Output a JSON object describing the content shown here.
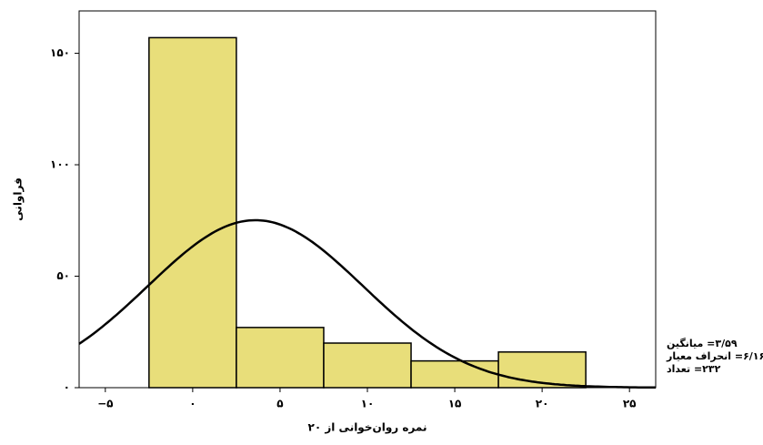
{
  "chart_data": {
    "type": "histogram",
    "x_label": "نمره روان‌خوانی از ۲۰",
    "y_label": "فراوانی",
    "bins": [
      -2.5,
      2.5,
      7.5,
      12.5,
      17.5,
      22.5
    ],
    "counts": [
      157,
      27,
      20,
      12,
      16
    ],
    "color": "#e8de7a",
    "xlim": [
      -6.5,
      26.5
    ],
    "xticks": [
      {
        "value": -5,
        "label": "−۵"
      },
      {
        "value": 0,
        "label": "۰"
      },
      {
        "value": 5,
        "label": "۵"
      },
      {
        "value": 10,
        "label": "۱۰"
      },
      {
        "value": 15,
        "label": "۱۵"
      },
      {
        "value": 20,
        "label": "۲۰"
      },
      {
        "value": 25,
        "label": "۲۵"
      }
    ],
    "ylim": [
      0,
      169
    ],
    "yticks": [
      {
        "value": 0,
        "label": "۰"
      },
      {
        "value": 50,
        "label": "۵۰"
      },
      {
        "value": 100,
        "label": "۱۰۰"
      },
      {
        "value": 150,
        "label": "۱۵۰"
      }
    ],
    "curve": {
      "mean": 3.59,
      "sd": 6.16,
      "n": 232
    },
    "stats_labels": [
      "۳/۵۹= میانگین",
      "۶/۱۶= انحراف معیار",
      "۲۳۲= تعداد"
    ]
  }
}
